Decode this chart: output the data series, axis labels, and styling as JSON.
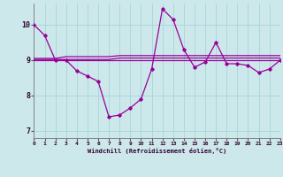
{
  "xlabel": "Windchill (Refroidissement éolien,°C)",
  "background_color": "#cce8ea",
  "grid_color": "#aad8dc",
  "line_color": "#990099",
  "x_hours": [
    0,
    1,
    2,
    3,
    4,
    5,
    6,
    7,
    8,
    9,
    10,
    11,
    12,
    13,
    14,
    15,
    16,
    17,
    18,
    19,
    20,
    21,
    22,
    23
  ],
  "y_main": [
    10.0,
    9.7,
    9.0,
    9.0,
    8.7,
    8.55,
    8.4,
    7.4,
    7.45,
    7.65,
    7.9,
    8.75,
    10.45,
    10.15,
    9.3,
    8.8,
    8.95,
    9.5,
    8.9,
    8.9,
    8.85,
    8.65,
    8.75,
    9.0
  ],
  "y_line1": [
    9.0,
    9.0,
    9.0,
    9.0,
    9.0,
    9.0,
    9.0,
    9.0,
    9.0,
    9.0,
    9.0,
    9.0,
    9.0,
    9.0,
    9.0,
    9.0,
    9.0,
    9.0,
    9.0,
    9.0,
    9.0,
    9.0,
    9.0,
    9.0
  ],
  "y_line2": [
    9.02,
    9.02,
    9.02,
    9.02,
    9.02,
    9.02,
    9.02,
    9.02,
    9.06,
    9.06,
    9.06,
    9.06,
    9.06,
    9.06,
    9.06,
    9.06,
    9.06,
    9.06,
    9.06,
    9.06,
    9.06,
    9.06,
    9.06,
    9.06
  ],
  "y_line3": [
    9.05,
    9.05,
    9.05,
    9.1,
    9.1,
    9.1,
    9.1,
    9.1,
    9.13,
    9.13,
    9.13,
    9.13,
    9.13,
    9.13,
    9.13,
    9.13,
    9.13,
    9.13,
    9.13,
    9.13,
    9.13,
    9.13,
    9.13,
    9.13
  ],
  "ylim": [
    6.8,
    10.6
  ],
  "xlim": [
    0,
    23
  ],
  "yticks": [
    7,
    8,
    9,
    10
  ],
  "xticks": [
    0,
    1,
    2,
    3,
    4,
    5,
    6,
    7,
    8,
    9,
    10,
    11,
    12,
    13,
    14,
    15,
    16,
    17,
    18,
    19,
    20,
    21,
    22,
    23
  ]
}
